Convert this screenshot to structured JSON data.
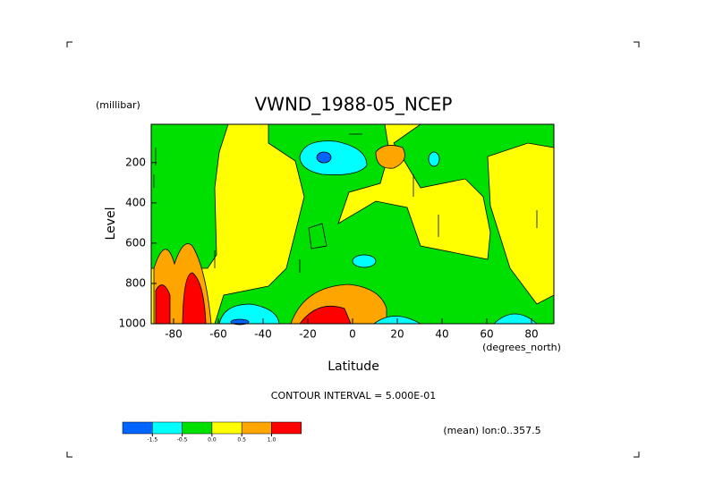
{
  "chart_data": {
    "type": "contour",
    "title": "VWND_1988-05_NCEP",
    "xlabel": "Latitude",
    "xunits": "(degrees_north)",
    "ylabel": "Level",
    "yunits": "(millibar)",
    "xlim": [
      -90,
      90
    ],
    "xticks": [
      -80,
      -60,
      -40,
      -20,
      0,
      20,
      40,
      60,
      80
    ],
    "ylim": [
      1000,
      10
    ],
    "yticks": [
      200,
      400,
      600,
      800,
      1000
    ],
    "contour_note": "CONTOUR INTERVAL = 5.000E-01",
    "footnote": "(mean) lon:0..357.5",
    "colorbar": {
      "colors": [
        "#0064ff",
        "#00ffff",
        "#00e000",
        "#ffff00",
        "#ffa500",
        "#ff0000"
      ],
      "levels": [
        {
          "value": -1.5,
          "label": "-1.5"
        },
        {
          "value": -0.5,
          "label": "-0.5"
        },
        {
          "value": 0,
          "label": "0.0"
        },
        {
          "value": 0.5,
          "label": "0.5"
        },
        {
          "value": 1,
          "label": "1.0"
        }
      ]
    }
  }
}
